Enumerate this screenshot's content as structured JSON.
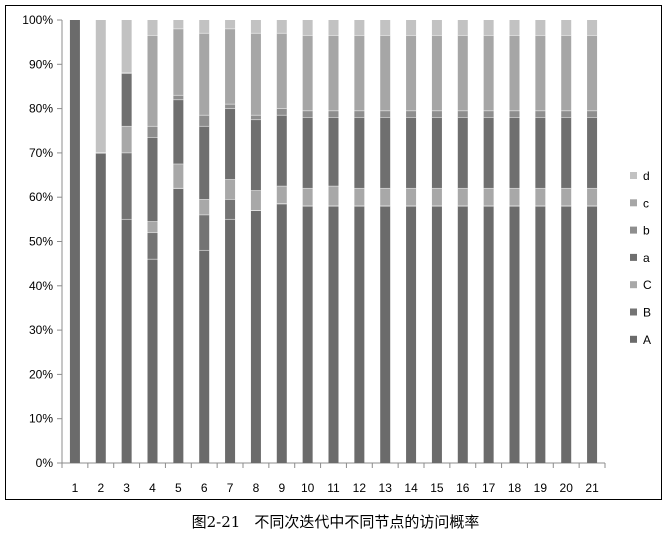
{
  "caption": {
    "figure_number": "图2-21",
    "text": "不同次迭代中不同节点的访问概率"
  },
  "chart_data": {
    "type": "bar",
    "stacked": true,
    "title": "",
    "xlabel": "",
    "ylabel": "",
    "ylim": [
      0,
      100
    ],
    "y_tick_labels": [
      "0%",
      "10%",
      "20%",
      "30%",
      "40%",
      "50%",
      "60%",
      "70%",
      "80%",
      "90%",
      "100%"
    ],
    "categories": [
      "1",
      "2",
      "3",
      "4",
      "5",
      "6",
      "7",
      "8",
      "9",
      "10",
      "11",
      "12",
      "13",
      "14",
      "15",
      "16",
      "17",
      "18",
      "19",
      "20",
      "21"
    ],
    "legend_position": "right",
    "legend_order": [
      "d",
      "c",
      "b",
      "a",
      "C",
      "B",
      "A"
    ],
    "series": [
      {
        "name": "A",
        "color": "#6b6b6b",
        "values": [
          100,
          70,
          55,
          46,
          62,
          48,
          55,
          57,
          58.5,
          58,
          58,
          58,
          58,
          58,
          58,
          58,
          58,
          58,
          58,
          58,
          58
        ]
      },
      {
        "name": "B",
        "color": "#747474",
        "values": [
          0,
          0,
          15,
          6,
          0,
          8,
          4.5,
          0,
          0,
          0,
          0,
          0,
          0,
          0,
          0,
          0,
          0,
          0,
          0,
          0,
          0
        ]
      },
      {
        "name": "C",
        "color": "#a8a8a8",
        "values": [
          0,
          0,
          6,
          2.5,
          5.5,
          3.5,
          4.5,
          4.5,
          4,
          4,
          4.5,
          4,
          4,
          4,
          4,
          4,
          4,
          4,
          4,
          4,
          4
        ]
      },
      {
        "name": "a",
        "color": "#6f6f6f",
        "values": [
          0,
          0,
          12,
          19,
          14.5,
          16.5,
          16,
          16,
          16,
          16,
          15.5,
          16,
          16,
          16,
          16,
          16,
          16,
          16,
          16,
          16,
          16
        ]
      },
      {
        "name": "b",
        "color": "#8e8e8e",
        "values": [
          0,
          0,
          0,
          2.5,
          1,
          2.5,
          1,
          1,
          1.5,
          1.5,
          1.5,
          1.5,
          1.5,
          1.5,
          1.5,
          1.5,
          1.5,
          1.5,
          1.5,
          1.5,
          1.5
        ]
      },
      {
        "name": "c",
        "color": "#a6a6a6",
        "values": [
          0,
          0,
          0,
          20.5,
          15,
          18.5,
          17,
          18.5,
          17,
          17,
          17,
          17,
          17,
          17,
          17,
          17,
          17,
          17,
          17,
          17,
          17
        ]
      },
      {
        "name": "d",
        "color": "#c2c2c2",
        "values": [
          0,
          30,
          12,
          3.5,
          2,
          3,
          2,
          3,
          3,
          3.5,
          3.5,
          3.5,
          3.5,
          3.5,
          3.5,
          3.5,
          3.5,
          3.5,
          3.5,
          3.5,
          3.5
        ]
      }
    ]
  }
}
